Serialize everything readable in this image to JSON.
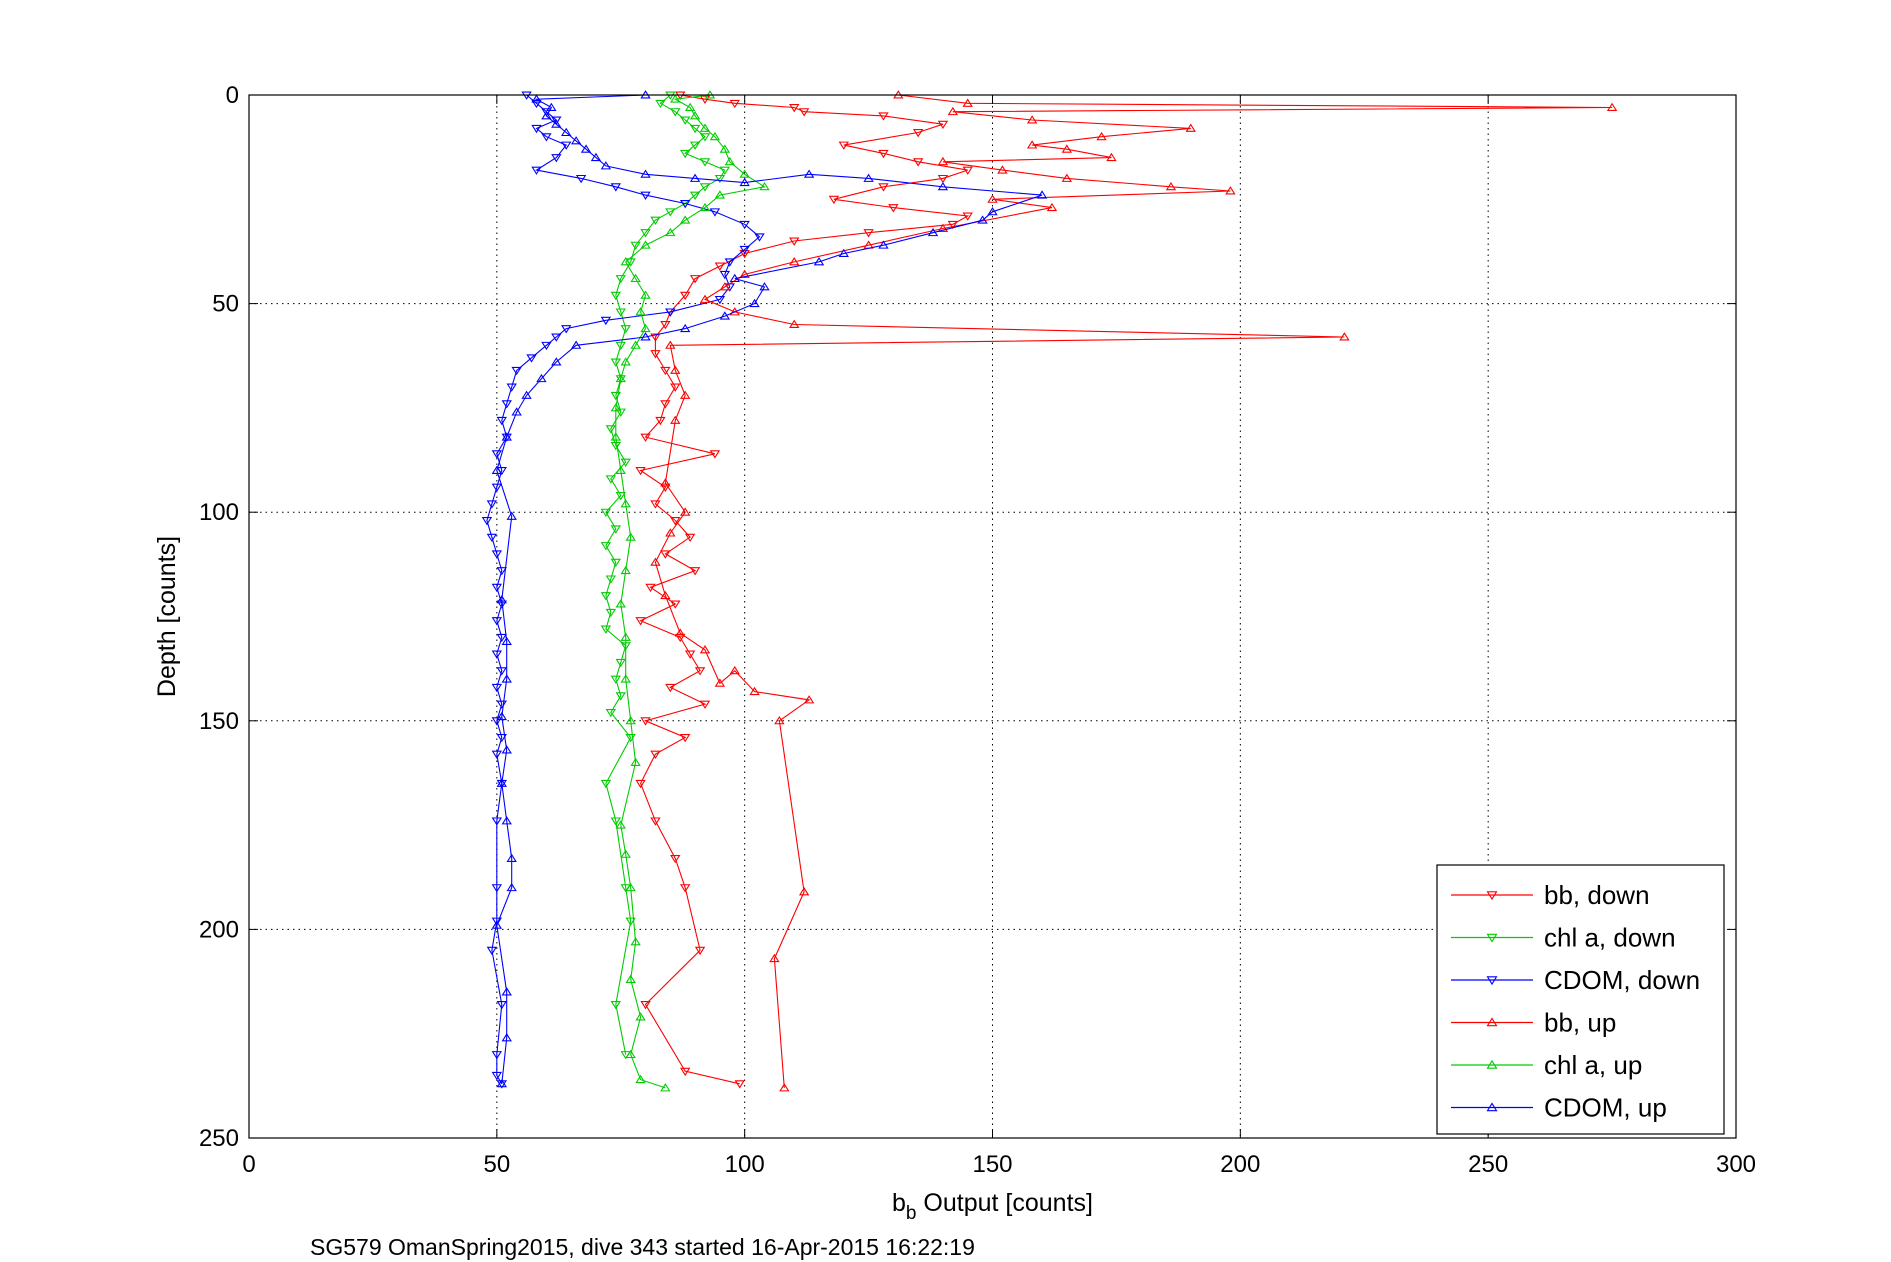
{
  "chart_data": {
    "type": "line",
    "caption": "SG579 OmanSpring2015, dive 343 started 16-Apr-2015 16:22:19",
    "xlabel": {
      "main": "b",
      "sub": "b",
      "rest": " Output [counts]"
    },
    "ylabel": "Depth [counts]",
    "xlim": [
      0,
      300
    ],
    "ylim": [
      0,
      250
    ],
    "y_reversed": true,
    "grid": true,
    "legend_position": "bottom-right",
    "x_ticks": [
      "0",
      "50",
      "100",
      "150",
      "200",
      "250",
      "300"
    ],
    "y_ticks": [
      "0",
      "50",
      "100",
      "150",
      "200",
      "250"
    ],
    "series": [
      {
        "name": "bb, down",
        "color": "#ff0000",
        "marker": "triangle-down",
        "points": [
          [
            87,
            0
          ],
          [
            92,
            1
          ],
          [
            98,
            2
          ],
          [
            110,
            3
          ],
          [
            112,
            4
          ],
          [
            128,
            5
          ],
          [
            140,
            7
          ],
          [
            135,
            9
          ],
          [
            120,
            12
          ],
          [
            128,
            14
          ],
          [
            135,
            16
          ],
          [
            145,
            18
          ],
          [
            140,
            20
          ],
          [
            128,
            22
          ],
          [
            118,
            25
          ],
          [
            130,
            27
          ],
          [
            145,
            29
          ],
          [
            142,
            31
          ],
          [
            125,
            33
          ],
          [
            110,
            35
          ],
          [
            100,
            38
          ],
          [
            95,
            41
          ],
          [
            90,
            44
          ],
          [
            88,
            48
          ],
          [
            85,
            52
          ],
          [
            84,
            55
          ],
          [
            82,
            58
          ],
          [
            82,
            62
          ],
          [
            84,
            66
          ],
          [
            86,
            70
          ],
          [
            84,
            74
          ],
          [
            83,
            78
          ],
          [
            80,
            82
          ],
          [
            94,
            86
          ],
          [
            79,
            90
          ],
          [
            84,
            94
          ],
          [
            82,
            98
          ],
          [
            86,
            102
          ],
          [
            89,
            106
          ],
          [
            84,
            110
          ],
          [
            90,
            114
          ],
          [
            81,
            118
          ],
          [
            86,
            122
          ],
          [
            79,
            126
          ],
          [
            87,
            130
          ],
          [
            89,
            134
          ],
          [
            91,
            138
          ],
          [
            85,
            142
          ],
          [
            92,
            146
          ],
          [
            80,
            150
          ],
          [
            88,
            154
          ],
          [
            82,
            158
          ],
          [
            79,
            165
          ],
          [
            82,
            174
          ],
          [
            86,
            183
          ],
          [
            88,
            190
          ],
          [
            91,
            205
          ],
          [
            80,
            218
          ],
          [
            88,
            234
          ],
          [
            99,
            237
          ]
        ]
      },
      {
        "name": "chl a, down",
        "color": "#00cc00",
        "marker": "triangle-down",
        "points": [
          [
            85,
            0
          ],
          [
            83,
            2
          ],
          [
            86,
            4
          ],
          [
            88,
            6
          ],
          [
            90,
            8
          ],
          [
            92,
            10
          ],
          [
            90,
            12
          ],
          [
            88,
            14
          ],
          [
            92,
            16
          ],
          [
            96,
            18
          ],
          [
            95,
            20
          ],
          [
            92,
            22
          ],
          [
            90,
            24
          ],
          [
            88,
            26
          ],
          [
            85,
            28
          ],
          [
            82,
            30
          ],
          [
            80,
            33
          ],
          [
            78,
            36
          ],
          [
            77,
            40
          ],
          [
            75,
            44
          ],
          [
            74,
            48
          ],
          [
            75,
            52
          ],
          [
            76,
            56
          ],
          [
            75,
            60
          ],
          [
            74,
            64
          ],
          [
            75,
            68
          ],
          [
            74,
            72
          ],
          [
            75,
            76
          ],
          [
            73,
            80
          ],
          [
            74,
            84
          ],
          [
            76,
            88
          ],
          [
            73,
            92
          ],
          [
            75,
            96
          ],
          [
            72,
            100
          ],
          [
            74,
            104
          ],
          [
            72,
            108
          ],
          [
            74,
            112
          ],
          [
            73,
            116
          ],
          [
            72,
            120
          ],
          [
            73,
            124
          ],
          [
            72,
            128
          ],
          [
            76,
            132
          ],
          [
            75,
            136
          ],
          [
            74,
            140
          ],
          [
            75,
            144
          ],
          [
            73,
            148
          ],
          [
            77,
            154
          ],
          [
            72,
            165
          ],
          [
            74,
            174
          ],
          [
            76,
            190
          ],
          [
            77,
            198
          ],
          [
            74,
            218
          ],
          [
            76,
            230
          ]
        ]
      },
      {
        "name": "CDOM, down",
        "color": "#0000ff",
        "marker": "triangle-down",
        "points": [
          [
            56,
            0
          ],
          [
            58,
            2
          ],
          [
            60,
            4
          ],
          [
            62,
            6
          ],
          [
            58,
            8
          ],
          [
            60,
            10
          ],
          [
            64,
            12
          ],
          [
            62,
            15
          ],
          [
            58,
            18
          ],
          [
            67,
            20
          ],
          [
            74,
            22
          ],
          [
            80,
            24
          ],
          [
            88,
            26
          ],
          [
            94,
            28
          ],
          [
            100,
            31
          ],
          [
            103,
            34
          ],
          [
            100,
            37
          ],
          [
            97,
            40
          ],
          [
            96,
            43
          ],
          [
            97,
            46
          ],
          [
            95,
            49
          ],
          [
            85,
            52
          ],
          [
            72,
            54
          ],
          [
            64,
            56
          ],
          [
            62,
            58
          ],
          [
            60,
            60
          ],
          [
            57,
            63
          ],
          [
            54,
            66
          ],
          [
            53,
            70
          ],
          [
            52,
            74
          ],
          [
            51,
            78
          ],
          [
            52,
            82
          ],
          [
            50,
            86
          ],
          [
            51,
            90
          ],
          [
            50,
            94
          ],
          [
            49,
            98
          ],
          [
            48,
            102
          ],
          [
            49,
            106
          ],
          [
            50,
            110
          ],
          [
            51,
            114
          ],
          [
            50,
            118
          ],
          [
            51,
            122
          ],
          [
            50,
            126
          ],
          [
            51,
            130
          ],
          [
            50,
            134
          ],
          [
            51,
            138
          ],
          [
            50,
            142
          ],
          [
            51,
            146
          ],
          [
            50,
            150
          ],
          [
            51,
            154
          ],
          [
            50,
            158
          ],
          [
            51,
            165
          ],
          [
            50,
            174
          ],
          [
            50,
            190
          ],
          [
            50,
            198
          ],
          [
            49,
            205
          ],
          [
            51,
            218
          ],
          [
            50,
            230
          ],
          [
            50,
            235
          ],
          [
            51,
            237
          ]
        ]
      },
      {
        "name": "bb, up",
        "color": "#ff0000",
        "marker": "triangle-up",
        "points": [
          [
            108,
            238
          ],
          [
            106,
            207
          ],
          [
            112,
            191
          ],
          [
            107,
            150
          ],
          [
            113,
            145
          ],
          [
            102,
            143
          ],
          [
            98,
            138
          ],
          [
            95,
            141
          ],
          [
            92,
            133
          ],
          [
            87,
            129
          ],
          [
            84,
            120
          ],
          [
            82,
            112
          ],
          [
            85,
            105
          ],
          [
            88,
            100
          ],
          [
            84,
            93
          ],
          [
            86,
            78
          ],
          [
            88,
            72
          ],
          [
            86,
            66
          ],
          [
            85,
            60
          ],
          [
            221,
            58
          ],
          [
            110,
            55
          ],
          [
            98,
            52
          ],
          [
            92,
            49
          ],
          [
            96,
            46
          ],
          [
            100,
            43
          ],
          [
            110,
            40
          ],
          [
            125,
            36
          ],
          [
            140,
            32
          ],
          [
            162,
            27
          ],
          [
            150,
            25
          ],
          [
            198,
            23
          ],
          [
            186,
            22
          ],
          [
            165,
            20
          ],
          [
            152,
            18
          ],
          [
            140,
            16
          ],
          [
            174,
            15
          ],
          [
            165,
            13
          ],
          [
            158,
            12
          ],
          [
            172,
            10
          ],
          [
            190,
            8
          ],
          [
            158,
            6
          ],
          [
            142,
            4
          ],
          [
            275,
            3
          ],
          [
            145,
            2
          ],
          [
            131,
            0
          ]
        ]
      },
      {
        "name": "chl a, up",
        "color": "#00cc00",
        "marker": "triangle-up",
        "points": [
          [
            84,
            238
          ],
          [
            79,
            236
          ],
          [
            77,
            230
          ],
          [
            79,
            221
          ],
          [
            77,
            212
          ],
          [
            78,
            203
          ],
          [
            77,
            190
          ],
          [
            76,
            182
          ],
          [
            75,
            175
          ],
          [
            78,
            160
          ],
          [
            77,
            150
          ],
          [
            76,
            140
          ],
          [
            76,
            130
          ],
          [
            75,
            122
          ],
          [
            76,
            114
          ],
          [
            77,
            106
          ],
          [
            76,
            98
          ],
          [
            75,
            90
          ],
          [
            74,
            82
          ],
          [
            74,
            75
          ],
          [
            75,
            68
          ],
          [
            76,
            64
          ],
          [
            78,
            60
          ],
          [
            80,
            56
          ],
          [
            79,
            52
          ],
          [
            80,
            48
          ],
          [
            78,
            44
          ],
          [
            76,
            40
          ],
          [
            80,
            36
          ],
          [
            85,
            33
          ],
          [
            88,
            30
          ],
          [
            92,
            27
          ],
          [
            95,
            24
          ],
          [
            104,
            22
          ],
          [
            100,
            19
          ],
          [
            97,
            16
          ],
          [
            96,
            13
          ],
          [
            94,
            10
          ],
          [
            92,
            8
          ],
          [
            90,
            5
          ],
          [
            89,
            3
          ],
          [
            86,
            1
          ],
          [
            93,
            0
          ]
        ]
      },
      {
        "name": "CDOM, up",
        "color": "#0000ff",
        "marker": "triangle-up",
        "points": [
          [
            51,
            237
          ],
          [
            52,
            226
          ],
          [
            52,
            215
          ],
          [
            50,
            199
          ],
          [
            53,
            190
          ],
          [
            53,
            183
          ],
          [
            52,
            174
          ],
          [
            51,
            165
          ],
          [
            52,
            157
          ],
          [
            51,
            149
          ],
          [
            52,
            140
          ],
          [
            52,
            131
          ],
          [
            51,
            121
          ],
          [
            53,
            101
          ],
          [
            50,
            90
          ],
          [
            52,
            82
          ],
          [
            54,
            76
          ],
          [
            56,
            72
          ],
          [
            59,
            68
          ],
          [
            62,
            64
          ],
          [
            66,
            60
          ],
          [
            80,
            58
          ],
          [
            88,
            56
          ],
          [
            96,
            53
          ],
          [
            102,
            50
          ],
          [
            104,
            46
          ],
          [
            98,
            44
          ],
          [
            115,
            40
          ],
          [
            120,
            38
          ],
          [
            128,
            36
          ],
          [
            138,
            33
          ],
          [
            148,
            30
          ],
          [
            150,
            28
          ],
          [
            160,
            24
          ],
          [
            140,
            22
          ],
          [
            125,
            20
          ],
          [
            113,
            19
          ],
          [
            100,
            21
          ],
          [
            90,
            20
          ],
          [
            80,
            19
          ],
          [
            72,
            17
          ],
          [
            70,
            15
          ],
          [
            68,
            13
          ],
          [
            66,
            11
          ],
          [
            64,
            9
          ],
          [
            62,
            7
          ],
          [
            60,
            5
          ],
          [
            61,
            3
          ],
          [
            58,
            1
          ],
          [
            80,
            0
          ]
        ]
      }
    ]
  }
}
